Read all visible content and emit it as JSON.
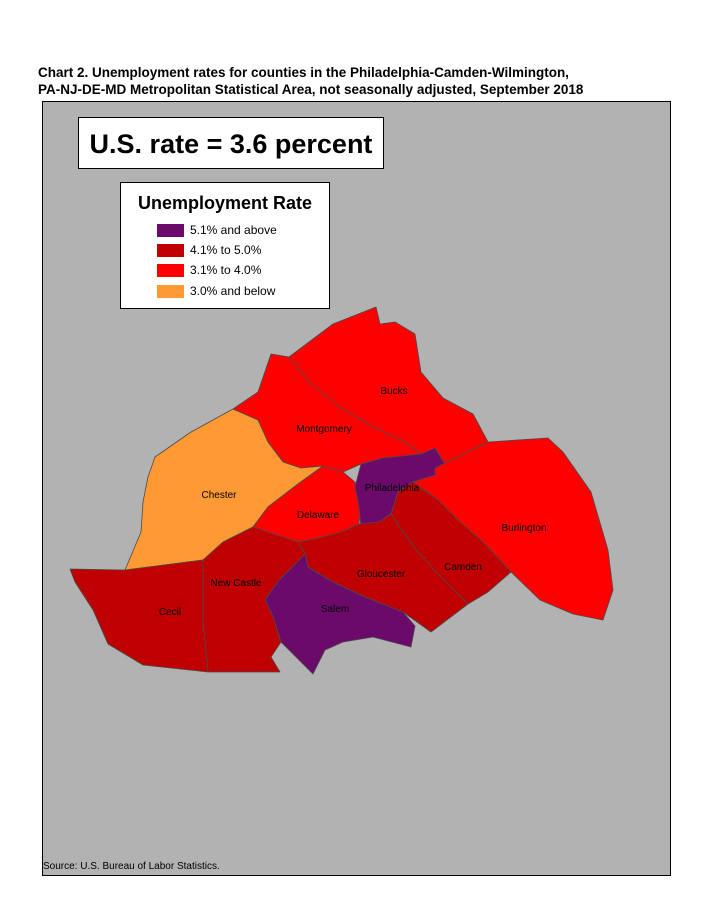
{
  "title": {
    "line1": "Chart 2. Unemployment rates for counties in the Philadelphia-Camden-Wilmington,",
    "line2": "PA-NJ-DE-MD Metropolitan Statistical Area, not seasonally adjusted, September 2018"
  },
  "us_rate": "U.S. rate = 3.6 percent",
  "legend": {
    "title": "Unemployment Rate",
    "items": [
      {
        "label": "5.1% and above",
        "color": "#6b0a6b"
      },
      {
        "label": "4.1% to 5.0%",
        "color": "#c00000"
      },
      {
        "label": "3.1% to 4.0%",
        "color": "#ff0000"
      },
      {
        "label": "3.0% and below",
        "color": "#ff9933"
      }
    ]
  },
  "counties": [
    {
      "name": "Bucks",
      "category": "3.1% to 4.0%"
    },
    {
      "name": "Montgomery",
      "category": "3.1% to 4.0%"
    },
    {
      "name": "Chester",
      "category": "3.0% and below"
    },
    {
      "name": "Philadelphia",
      "category": "5.1% and above"
    },
    {
      "name": "Delaware",
      "category": "3.1% to 4.0%"
    },
    {
      "name": "Burlington",
      "category": "3.1% to 4.0%"
    },
    {
      "name": "Camden",
      "category": "4.1% to 5.0%"
    },
    {
      "name": "Gloucester",
      "category": "4.1% to 5.0%"
    },
    {
      "name": "Salem",
      "category": "5.1% and above"
    },
    {
      "name": "New Castle",
      "category": "4.1% to 5.0%"
    },
    {
      "name": "Cecil",
      "category": "4.1% to 5.0%"
    }
  ],
  "source": "Source: U.S. Bureau of Labor Statistics."
}
